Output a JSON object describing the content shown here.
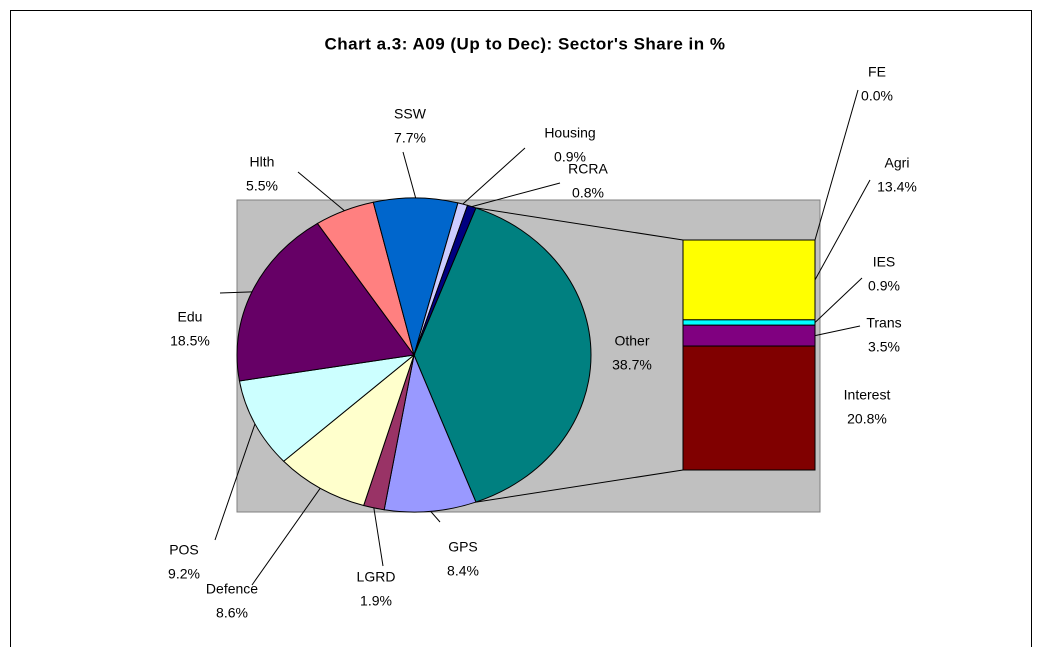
{
  "chart_data": {
    "type": "pie",
    "title": "Chart a.3: A09 (Up to Dec): Sector's Share in %",
    "categories": [
      "Other",
      "GPS",
      "LGRD",
      "Defence",
      "POS",
      "Edu",
      "Hlth",
      "SSW",
      "Housing",
      "RCRA"
    ],
    "values": [
      38.7,
      8.4,
      1.9,
      8.6,
      9.2,
      18.5,
      5.5,
      7.7,
      0.9,
      0.8
    ],
    "value_labels": [
      "38.7%",
      "8.4%",
      "1.9%",
      "8.6%",
      "9.2%",
      "18.5%",
      "5.5%",
      "7.7%",
      "0.9%",
      "0.8%"
    ],
    "colors": [
      "#008080",
      "#9999ff",
      "#993366",
      "#ffffcc",
      "#ccffff",
      "#660066",
      "#ff8080",
      "#0066cc",
      "#ccccff",
      "#000080"
    ],
    "breakout": {
      "categories": [
        "FE",
        "Agri",
        "IES",
        "Trans",
        "Interest"
      ],
      "values": [
        0.0,
        13.4,
        0.9,
        3.5,
        20.8
      ],
      "value_labels": [
        "0.0%",
        "13.4%",
        "0.9%",
        "3.5%",
        "20.8%"
      ],
      "colors": [
        "#000080",
        "#ffff00",
        "#00ffff",
        "#800080",
        "#800000"
      ]
    }
  }
}
